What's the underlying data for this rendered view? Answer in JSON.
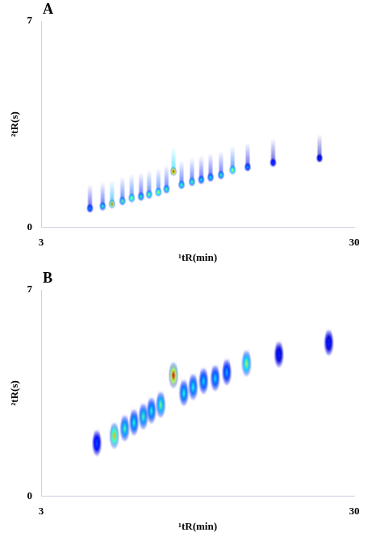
{
  "chart_data": [
    {
      "panel": "A",
      "type": "scatter",
      "marker": "streak",
      "x_label": "¹tR(min)",
      "y_label": "²tR(s)",
      "xlim": [
        3,
        30
      ],
      "xticks": [
        3,
        30
      ],
      "ylim": [
        0,
        7
      ],
      "yticks": [
        0,
        7
      ],
      "grid": false,
      "series": [
        {
          "x": [
            7.2,
            8.3,
            9.1,
            10.0,
            10.8,
            11.6,
            12.3,
            13.1,
            13.8,
            14.4,
            15.1,
            16.0,
            16.8,
            17.6,
            18.5,
            19.5,
            20.8,
            23.0,
            27.0
          ],
          "values": [
            0.65,
            0.72,
            0.8,
            0.9,
            1.0,
            1.05,
            1.12,
            1.2,
            1.3,
            1.9,
            1.45,
            1.55,
            1.62,
            1.7,
            1.78,
            1.95,
            2.05,
            2.2,
            2.35
          ],
          "intensity": [
            0.3,
            0.45,
            0.8,
            0.5,
            0.6,
            0.45,
            0.55,
            0.6,
            0.5,
            0.95,
            0.5,
            0.5,
            0.4,
            0.4,
            0.45,
            0.6,
            0.3,
            0.2,
            0.15
          ]
        }
      ]
    },
    {
      "panel": "B",
      "type": "scatter",
      "marker": "ellipse",
      "x_label": "¹tR(min)",
      "y_label": "²tR(s)",
      "xlim": [
        3,
        30
      ],
      "xticks": [
        3,
        30
      ],
      "ylim": [
        0,
        7
      ],
      "yticks": [
        0,
        7
      ],
      "grid": false,
      "series": [
        {
          "x": [
            7.8,
            9.3,
            10.2,
            11.0,
            11.8,
            12.5,
            13.3,
            14.4,
            15.3,
            16.1,
            17.0,
            18.0,
            19.0,
            20.7,
            23.5,
            27.8
          ],
          "values": [
            1.8,
            2.05,
            2.3,
            2.5,
            2.7,
            2.9,
            3.1,
            4.1,
            3.5,
            3.7,
            3.9,
            4.0,
            4.2,
            4.5,
            4.8,
            5.2
          ],
          "intensity": [
            0.2,
            0.7,
            0.45,
            0.4,
            0.45,
            0.4,
            0.5,
            0.9,
            0.4,
            0.4,
            0.35,
            0.35,
            0.3,
            0.55,
            0.15,
            0.15
          ]
        }
      ]
    }
  ]
}
